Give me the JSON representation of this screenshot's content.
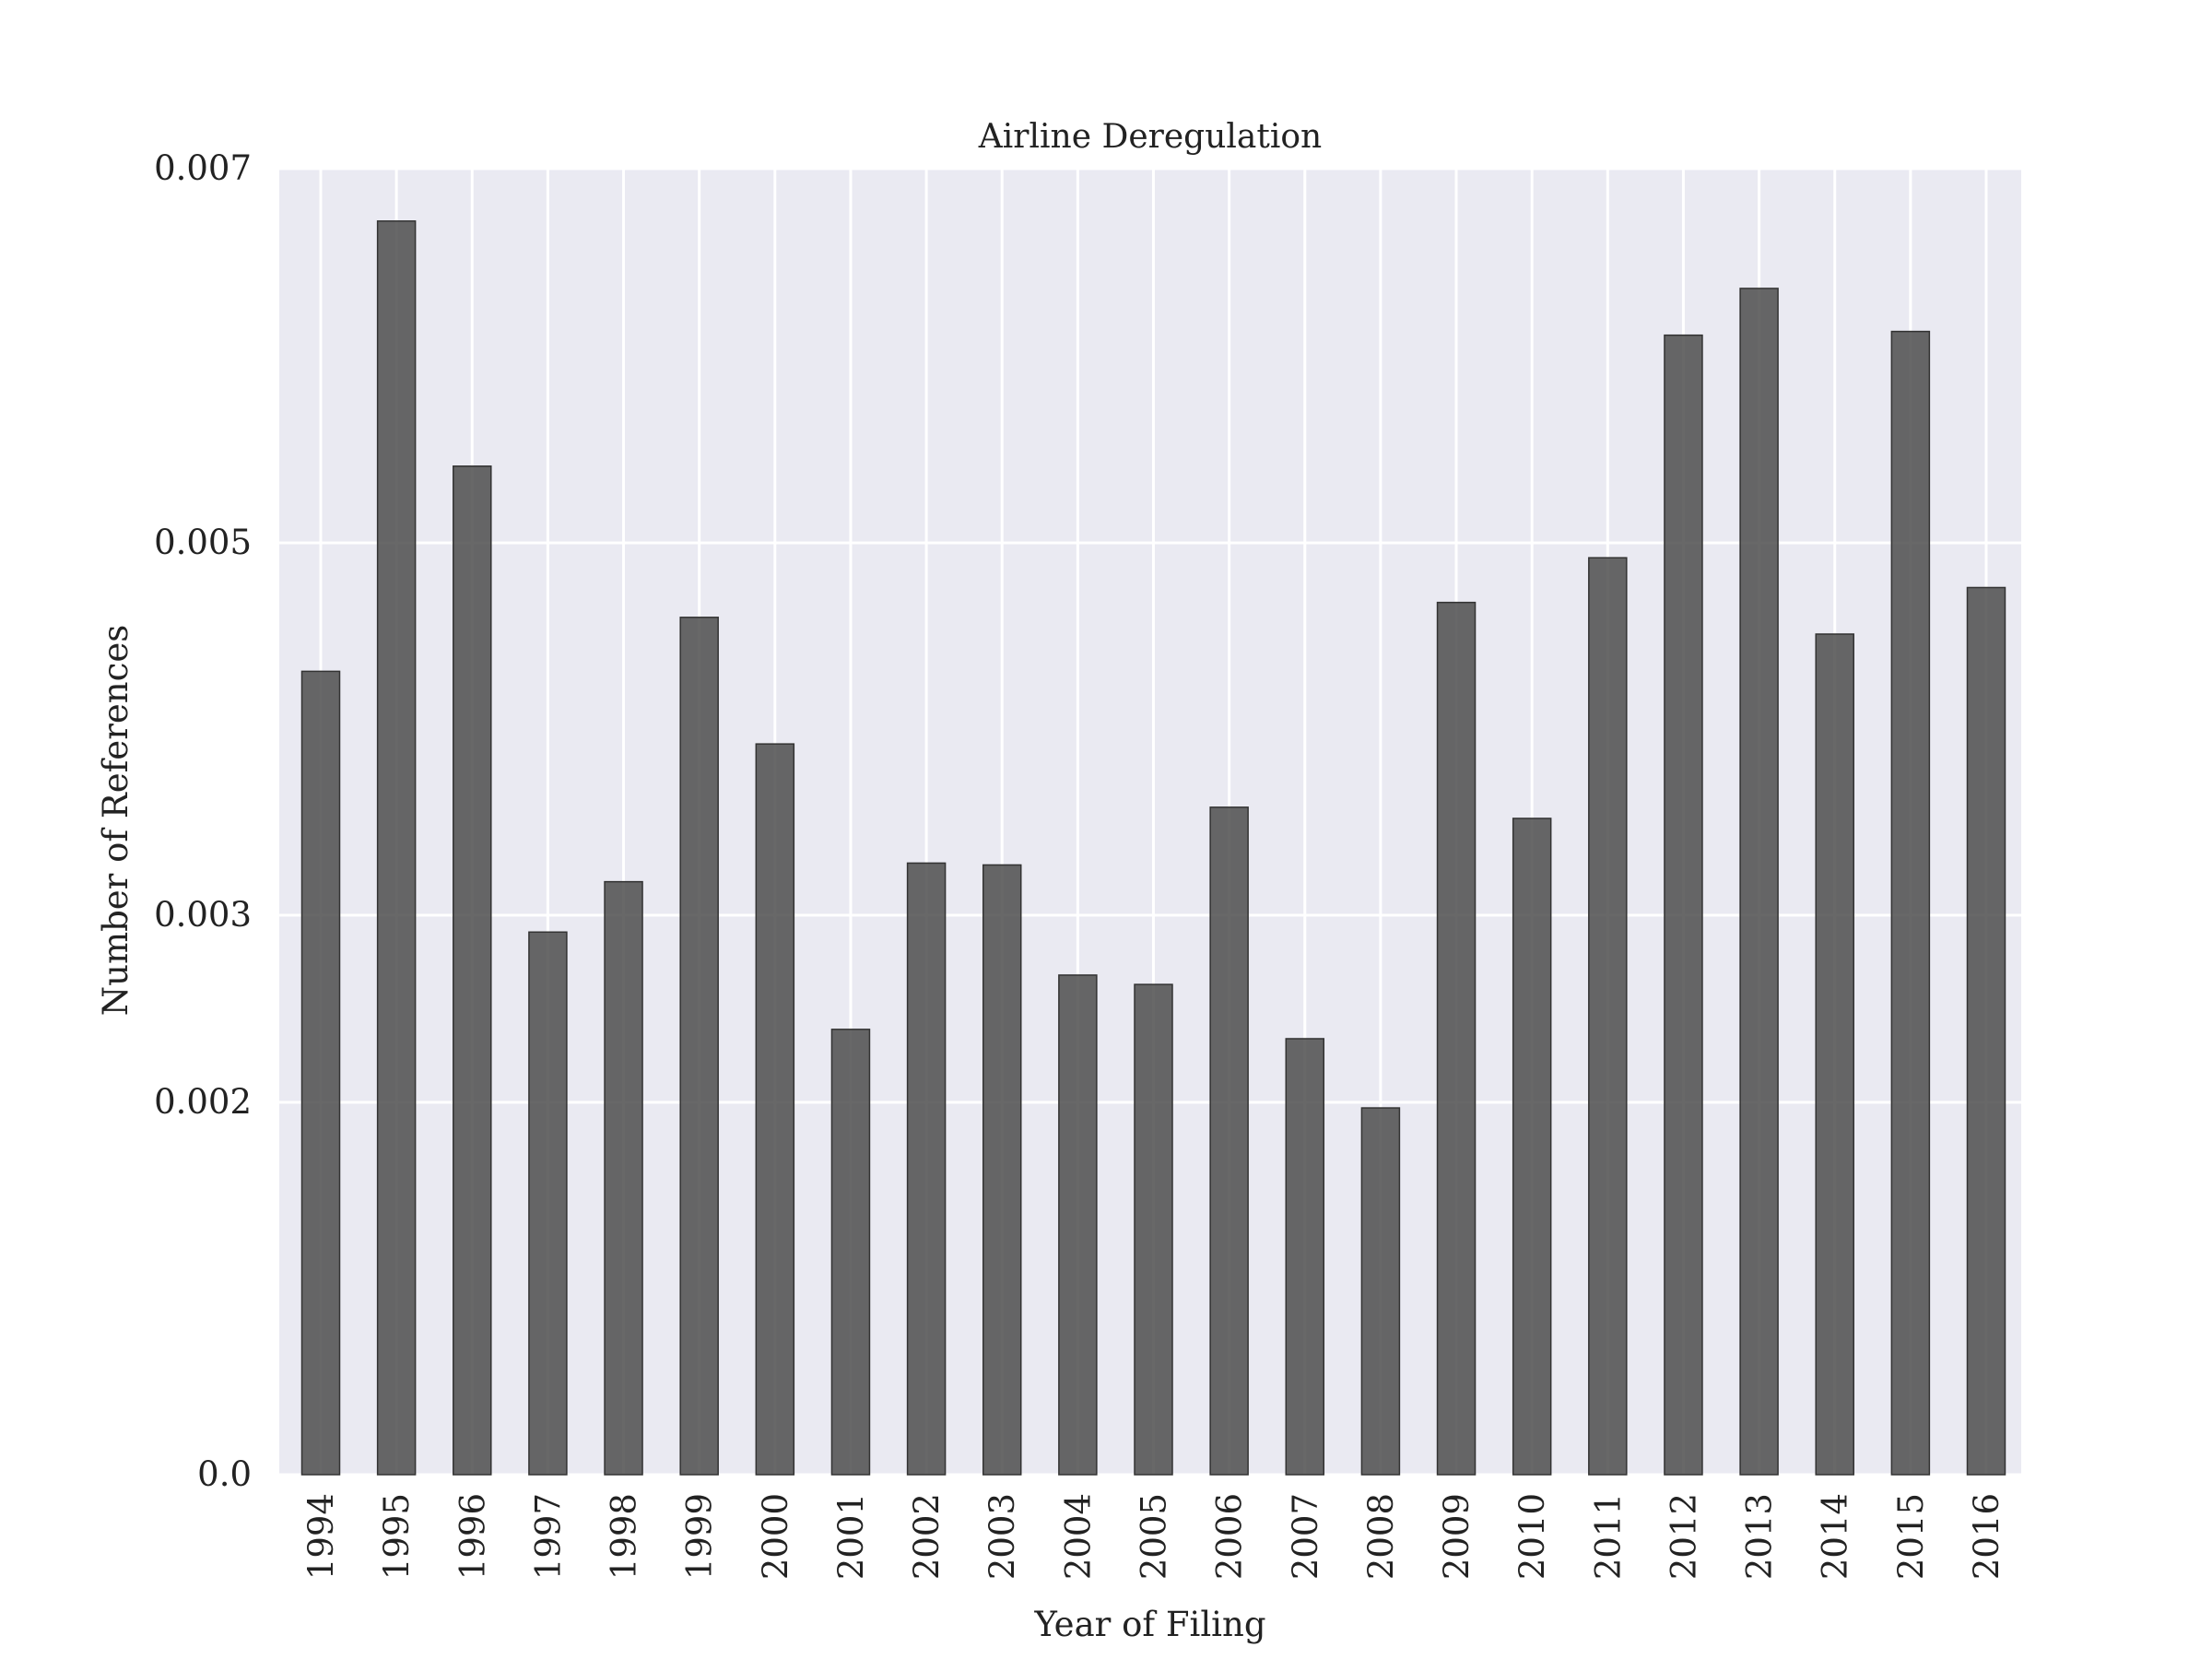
{
  "chart_data": {
    "type": "bar",
    "title": "Airline Deregulation",
    "xlabel": "Year of Filing",
    "ylabel": "Number of References",
    "categories": [
      "1994",
      "1995",
      "1996",
      "1997",
      "1998",
      "1999",
      "2000",
      "2001",
      "2002",
      "2003",
      "2004",
      "2005",
      "2006",
      "2007",
      "2008",
      "2009",
      "2010",
      "2011",
      "2012",
      "2013",
      "2014",
      "2015",
      "2016"
    ],
    "values": [
      0.00431,
      0.00672,
      0.00541,
      0.00291,
      0.00318,
      0.0046,
      0.00392,
      0.00239,
      0.00328,
      0.00327,
      0.00268,
      0.00263,
      0.00358,
      0.00234,
      0.00197,
      0.00468,
      0.00352,
      0.00492,
      0.00611,
      0.00636,
      0.00451,
      0.00613,
      0.00476
    ],
    "yticks": [
      0.0,
      0.002,
      0.003,
      0.005,
      0.007
    ],
    "ytick_labels": [
      "0.0",
      "0.002",
      "0.003",
      "0.005",
      "0.007"
    ],
    "ylim": [
      0,
      0.007
    ],
    "bar_color": "#4d4d4d",
    "background_color": "#eaeaf2",
    "grid": true,
    "legend": false
  }
}
